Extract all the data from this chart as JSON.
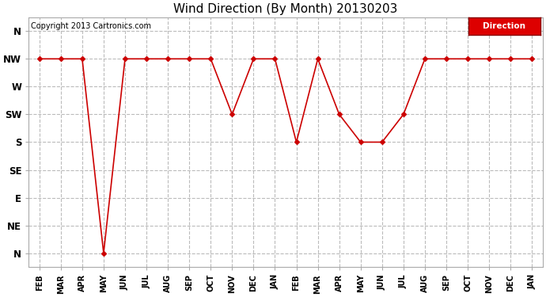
{
  "title": "Wind Direction (By Month) 20130203",
  "copyright": "Copyright 2013 Cartronics.com",
  "legend_label": "Direction",
  "legend_bg": "#dd0000",
  "legend_text_color": "#ffffff",
  "x_labels": [
    "FEB",
    "MAR",
    "APR",
    "MAY",
    "JUN",
    "JUL",
    "AUG",
    "SEP",
    "OCT",
    "NOV",
    "DEC",
    "JAN",
    "FEB",
    "MAR",
    "APR",
    "MAY",
    "JUN",
    "JUL",
    "AUG",
    "SEP",
    "OCT",
    "NOV",
    "DEC",
    "JAN"
  ],
  "y_labels": [
    "N",
    "NE",
    "E",
    "SE",
    "S",
    "SW",
    "W",
    "NW",
    "N"
  ],
  "y_values": [
    0,
    1,
    2,
    3,
    4,
    5,
    6,
    7,
    8
  ],
  "data_values": [
    7,
    7,
    7,
    0,
    7,
    7,
    7,
    7,
    7,
    5,
    7,
    7,
    4,
    7,
    5,
    4,
    4,
    5,
    7,
    7,
    7,
    7,
    7,
    7
  ],
  "line_color": "#cc0000",
  "marker": "D",
  "marker_size": 3,
  "bg_color": "#ffffff",
  "plot_bg": "#ffffff",
  "grid_color": "#bbbbbb",
  "grid_style": "--",
  "figwidth": 6.9,
  "figheight": 3.75,
  "dpi": 100
}
